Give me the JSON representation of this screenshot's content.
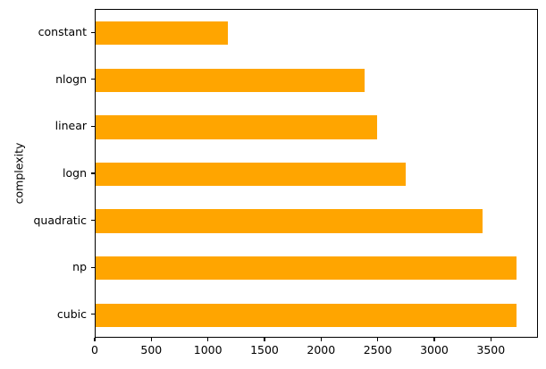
{
  "chart_data": {
    "type": "bar",
    "orientation": "horizontal",
    "title": "",
    "xlabel": "",
    "ylabel": "complexity",
    "categories": [
      "constant",
      "nlogn",
      "linear",
      "logn",
      "quadratic",
      "np",
      "cubic"
    ],
    "values": [
      1175,
      2385,
      2495,
      2750,
      3435,
      3730,
      3730
    ],
    "category_order": "top-to-bottom",
    "x_ticks": [
      0,
      500,
      1000,
      1500,
      2000,
      2500,
      3000,
      3500
    ],
    "xlim": [
      0,
      3916
    ],
    "grid": false,
    "legend": false,
    "bar_color": "#ffa500",
    "spine_color": "#000000",
    "text_color": "#000000",
    "background_color": "#ffffff",
    "bar_relative_height": 0.5
  }
}
